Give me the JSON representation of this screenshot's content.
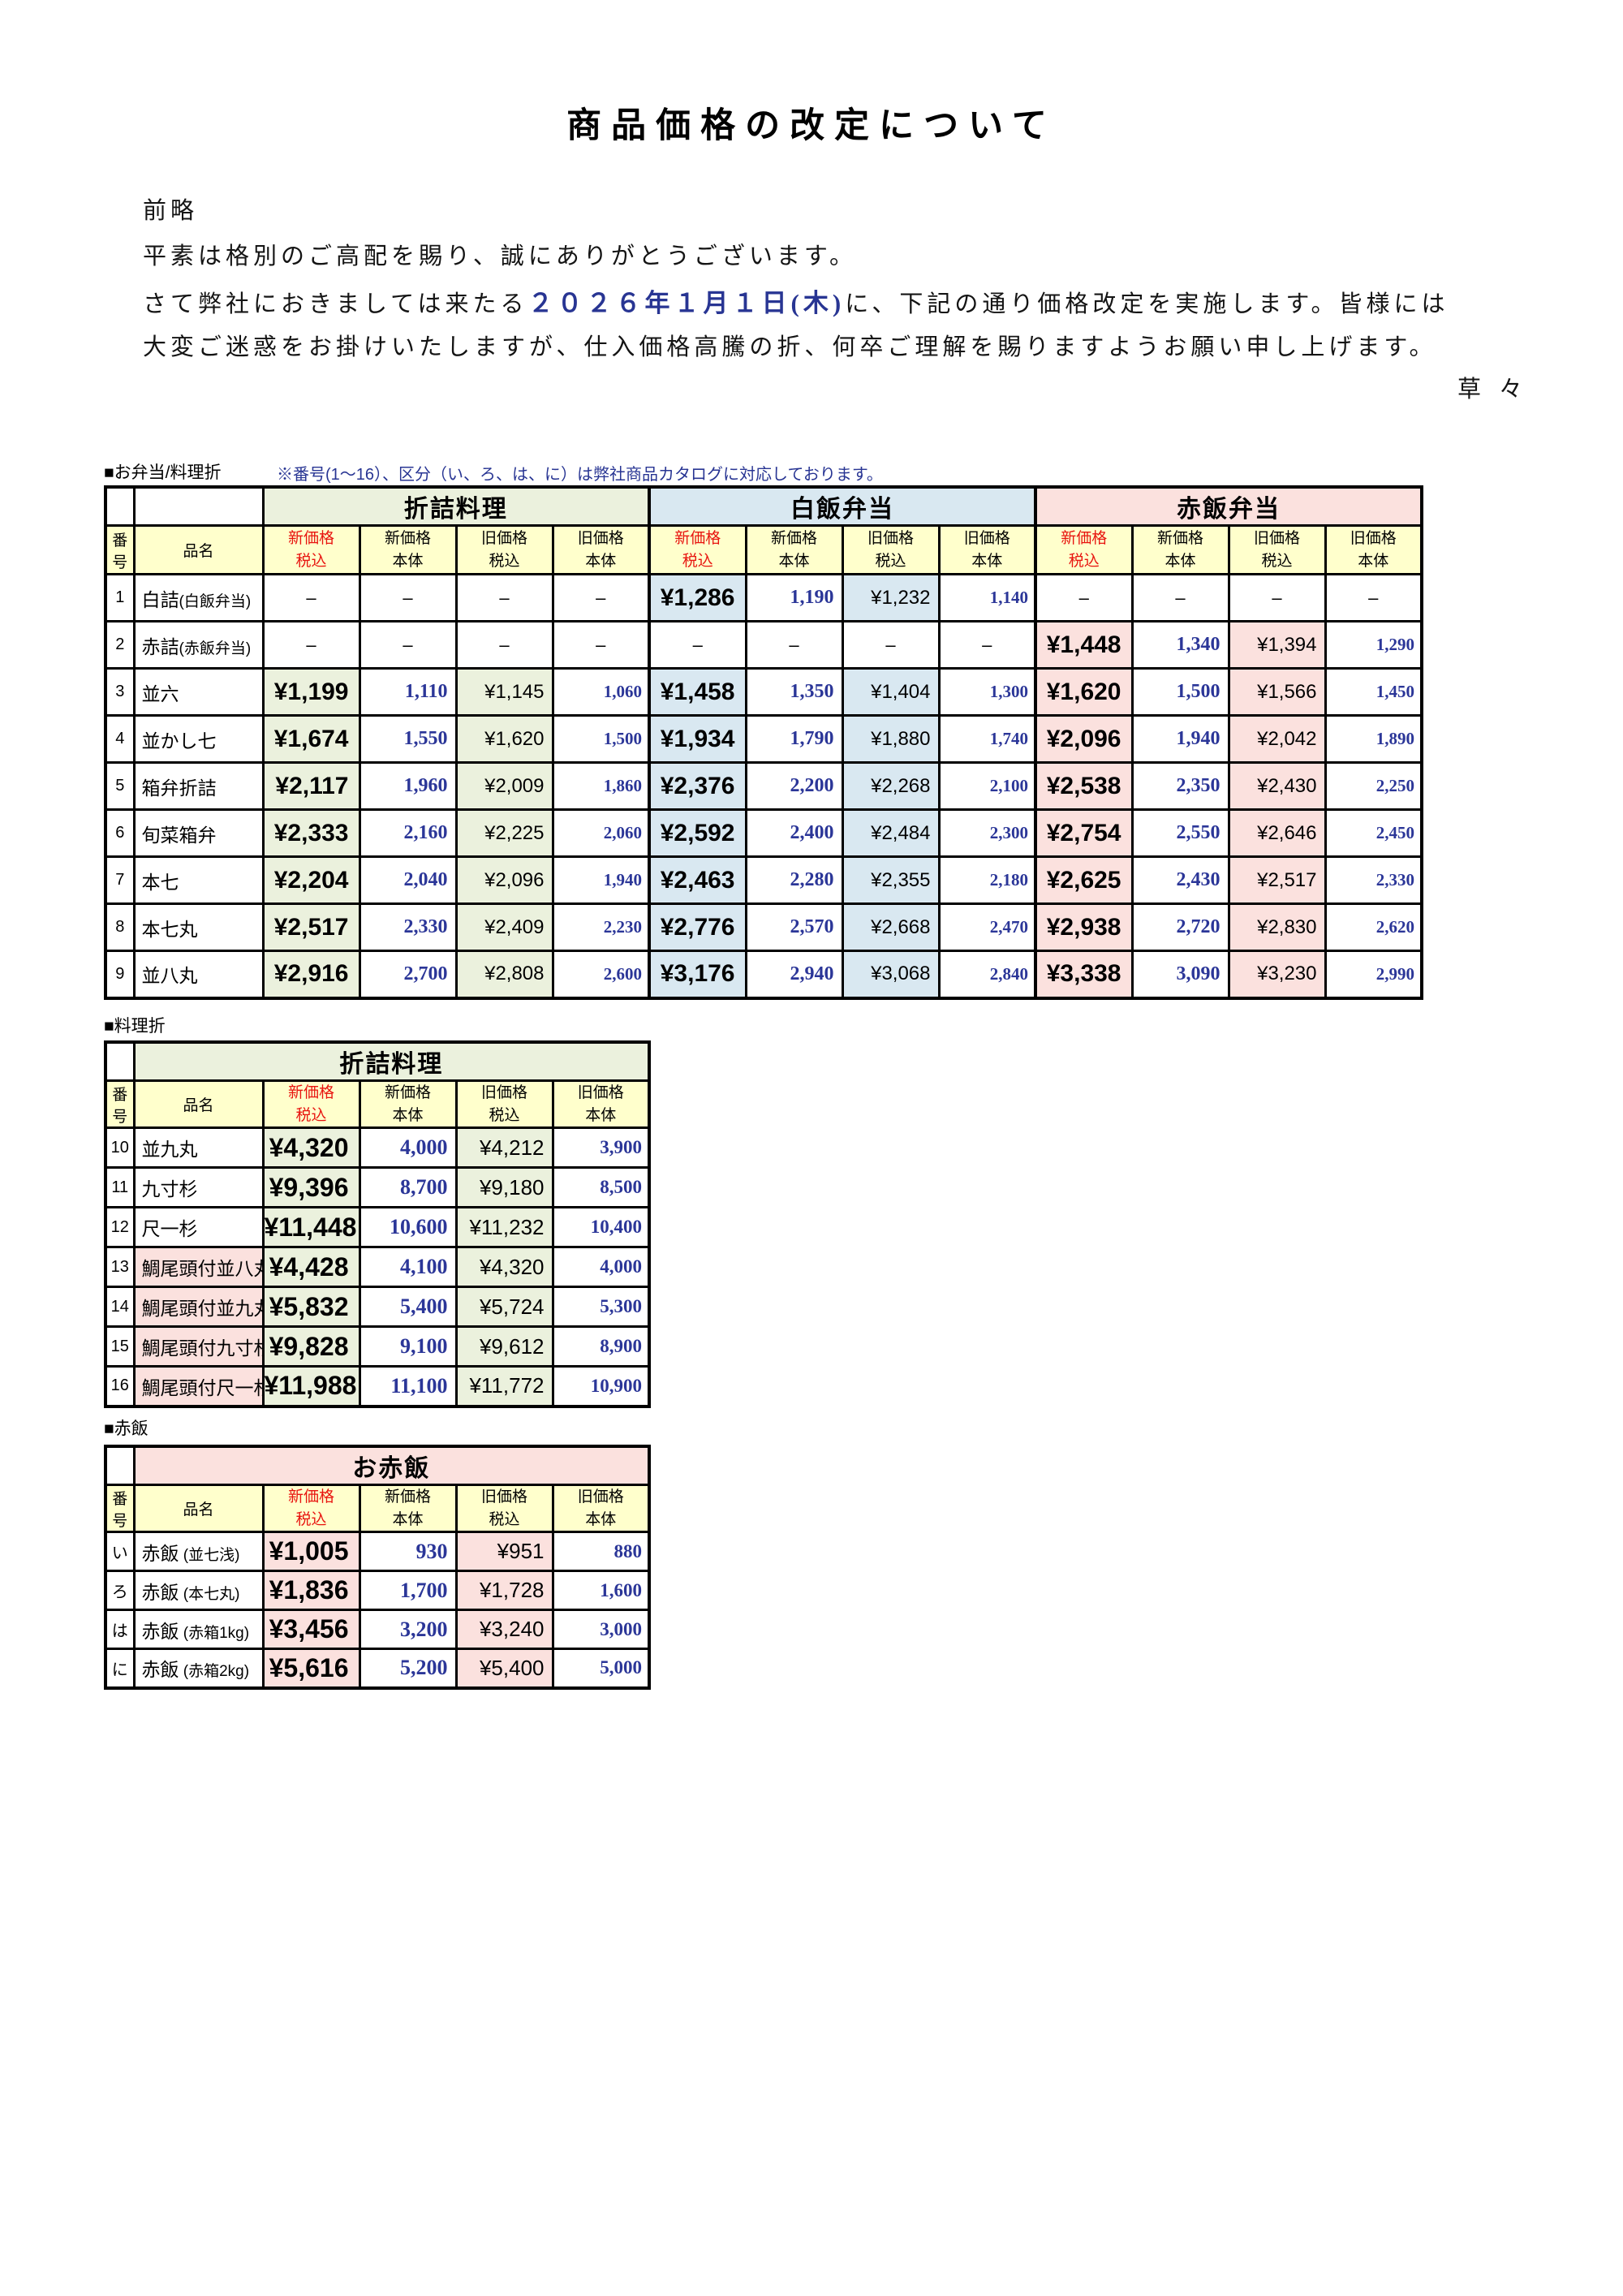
{
  "title": "商品価格の改定について",
  "letter": {
    "opening": "前略",
    "line1": "平素は格別のご高配を賜り、誠にありがとうございます。",
    "line2_before": "さて弊社におきましては来たる",
    "line2_date": "２０２６年１月１日(木)",
    "line2_after": "に、下記の通り価格改定を実施します。皆様には",
    "line3": "大変ご迷惑をお掛けいたしますが、仕入価格高騰の折、何卒ご理解を賜りますようお願い申し上げます。",
    "closing": "草々"
  },
  "colors": {
    "green": "#ebf1dd",
    "blue": "#d9e8f1",
    "pink": "#fbe1de",
    "yellow": "#ffffcc",
    "red": "#e8140f",
    "navy": "#283593",
    "number_blue": "#2b3698"
  },
  "corner_headers": [
    "番号",
    "品名"
  ],
  "subheaders": [
    [
      "新価格",
      "税込"
    ],
    [
      "新価格",
      "本体"
    ],
    [
      "旧価格",
      "税込"
    ],
    [
      "旧価格",
      "本体"
    ]
  ],
  "table1": {
    "label": "■お弁当/料理折",
    "note": "※番号(1～16）、区分（い、ろ、は、に）は弊社商品カタログに対応しております。",
    "groups": [
      {
        "label": "折詰料理",
        "theme": "green"
      },
      {
        "label": "白飯弁当",
        "theme": "blue"
      },
      {
        "label": "赤飯弁当",
        "theme": "pink"
      }
    ],
    "rows": [
      {
        "no": "1",
        "name": "白詰",
        "name_note": "(白飯弁当)",
        "cells": [
          "–",
          "–",
          "–",
          "–",
          "¥1,286",
          "1,190",
          "¥1,232",
          "1,140",
          "–",
          "–",
          "–",
          "–"
        ]
      },
      {
        "no": "2",
        "name": "赤詰",
        "name_note": "(赤飯弁当)",
        "cells": [
          "–",
          "–",
          "–",
          "–",
          "–",
          "–",
          "–",
          "–",
          "¥1,448",
          "1,340",
          "¥1,394",
          "1,290"
        ]
      },
      {
        "no": "3",
        "name": "並六",
        "cells": [
          "¥1,199",
          "1,110",
          "¥1,145",
          "1,060",
          "¥1,458",
          "1,350",
          "¥1,404",
          "1,300",
          "¥1,620",
          "1,500",
          "¥1,566",
          "1,450"
        ]
      },
      {
        "no": "4",
        "name": "並かし七",
        "cells": [
          "¥1,674",
          "1,550",
          "¥1,620",
          "1,500",
          "¥1,934",
          "1,790",
          "¥1,880",
          "1,740",
          "¥2,096",
          "1,940",
          "¥2,042",
          "1,890"
        ]
      },
      {
        "no": "5",
        "name": "箱弁折詰",
        "cells": [
          "¥2,117",
          "1,960",
          "¥2,009",
          "1,860",
          "¥2,376",
          "2,200",
          "¥2,268",
          "2,100",
          "¥2,538",
          "2,350",
          "¥2,430",
          "2,250"
        ]
      },
      {
        "no": "6",
        "name": "旬菜箱弁",
        "cells": [
          "¥2,333",
          "2,160",
          "¥2,225",
          "2,060",
          "¥2,592",
          "2,400",
          "¥2,484",
          "2,300",
          "¥2,754",
          "2,550",
          "¥2,646",
          "2,450"
        ]
      },
      {
        "no": "7",
        "name": "本七",
        "cells": [
          "¥2,204",
          "2,040",
          "¥2,096",
          "1,940",
          "¥2,463",
          "2,280",
          "¥2,355",
          "2,180",
          "¥2,625",
          "2,430",
          "¥2,517",
          "2,330"
        ]
      },
      {
        "no": "8",
        "name": "本七丸",
        "cells": [
          "¥2,517",
          "2,330",
          "¥2,409",
          "2,230",
          "¥2,776",
          "2,570",
          "¥2,668",
          "2,470",
          "¥2,938",
          "2,720",
          "¥2,830",
          "2,620"
        ]
      },
      {
        "no": "9",
        "name": "並八丸",
        "cells": [
          "¥2,916",
          "2,700",
          "¥2,808",
          "2,600",
          "¥3,176",
          "2,940",
          "¥3,068",
          "2,840",
          "¥3,338",
          "3,090",
          "¥3,230",
          "2,990"
        ]
      }
    ]
  },
  "table2": {
    "label": "■料理折",
    "group": {
      "label": "折詰料理",
      "theme": "green"
    },
    "rows": [
      {
        "no": "10",
        "name": "並九丸",
        "cells": [
          "¥4,320",
          "4,000",
          "¥4,212",
          "3,900"
        ]
      },
      {
        "no": "11",
        "name": "九寸杉",
        "cells": [
          "¥9,396",
          "8,700",
          "¥9,180",
          "8,500"
        ]
      },
      {
        "no": "12",
        "name": "尺一杉",
        "cells": [
          "¥11,448",
          "10,600",
          "¥11,232",
          "10,400"
        ]
      },
      {
        "no": "13",
        "name": "鯛尾頭付並八丸",
        "name_theme": "pink",
        "cells": [
          "¥4,428",
          "4,100",
          "¥4,320",
          "4,000"
        ]
      },
      {
        "no": "14",
        "name": "鯛尾頭付並九丸",
        "name_theme": "pink",
        "cells": [
          "¥5,832",
          "5,400",
          "¥5,724",
          "5,300"
        ]
      },
      {
        "no": "15",
        "name": "鯛尾頭付九寸杉",
        "name_theme": "pink",
        "cells": [
          "¥9,828",
          "9,100",
          "¥9,612",
          "8,900"
        ]
      },
      {
        "no": "16",
        "name": "鯛尾頭付尺一杉",
        "name_theme": "pink",
        "cells": [
          "¥11,988",
          "11,100",
          "¥11,772",
          "10,900"
        ]
      }
    ]
  },
  "table3": {
    "label": "■赤飯",
    "group": {
      "label": "お赤飯",
      "theme": "pink"
    },
    "rows": [
      {
        "no": "い",
        "name": "赤飯",
        "name_note": " (並七浅)",
        "cells": [
          "¥1,005",
          "930",
          "¥951",
          "880"
        ]
      },
      {
        "no": "ろ",
        "name": "赤飯",
        "name_note": " (本七丸)",
        "cells": [
          "¥1,836",
          "1,700",
          "¥1,728",
          "1,600"
        ]
      },
      {
        "no": "は",
        "name": "赤飯",
        "name_note": " (赤箱1kg)",
        "cells": [
          "¥3,456",
          "3,200",
          "¥3,240",
          "3,000"
        ]
      },
      {
        "no": "に",
        "name": "赤飯",
        "name_note": " (赤箱2kg)",
        "cells": [
          "¥5,616",
          "5,200",
          "¥5,400",
          "5,000"
        ]
      }
    ]
  }
}
